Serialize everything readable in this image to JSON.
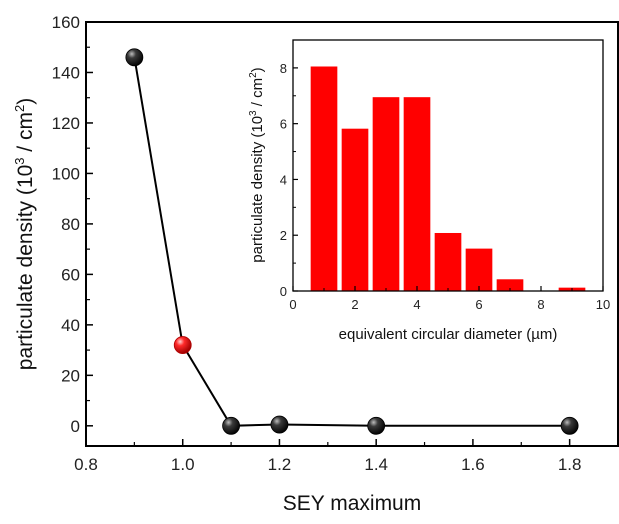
{
  "chart_data": [
    {
      "type": "line",
      "xlabel": "SEY maximum",
      "ylabel": {
        "prefix": "particulate density (10",
        "sup1": "3",
        "middle": " / cm",
        "sup2": "2",
        "suffix": ")"
      },
      "xlim": [
        0.8,
        1.9
      ],
      "ylim": [
        -8,
        160
      ],
      "xticks": [
        0.8,
        1.0,
        1.2,
        1.4,
        1.6,
        1.8
      ],
      "xtick_labels": [
        "0.8",
        "1.0",
        "1.2",
        "1.4",
        "1.6",
        "1.8"
      ],
      "yticks": [
        0,
        20,
        40,
        60,
        80,
        100,
        120,
        140,
        160
      ],
      "ytick_labels": [
        "0",
        "20",
        "40",
        "60",
        "80",
        "100",
        "120",
        "140",
        "160"
      ],
      "series": [
        {
          "x": [
            0.9,
            1.0,
            1.1,
            1.2,
            1.4,
            1.8
          ],
          "y": [
            146,
            32,
            0,
            0.5,
            0,
            0
          ],
          "marker_colors": [
            "#111111",
            "#e00000",
            "#111111",
            "#111111",
            "#111111",
            "#111111"
          ],
          "line_color": "#000000"
        }
      ]
    },
    {
      "type": "bar",
      "xlabel": "equivalent circular diameter (µm)",
      "ylabel": {
        "prefix": "particulate density (10",
        "sup1": "3",
        "middle": " / cm",
        "sup2": "2",
        "suffix": ")"
      },
      "xlim": [
        0,
        10
      ],
      "ylim": [
        0,
        9
      ],
      "xticks": [
        0,
        2,
        4,
        6,
        8,
        10
      ],
      "xtick_labels": [
        "0",
        "2",
        "4",
        "6",
        "8",
        "10"
      ],
      "yticks": [
        0,
        2,
        4,
        6,
        8
      ],
      "ytick_labels": [
        "0",
        "2",
        "4",
        "6",
        "8"
      ],
      "bar_width": 0.86,
      "x": [
        1,
        2,
        3,
        4,
        5,
        6,
        7,
        8,
        9
      ],
      "values": [
        8.05,
        5.82,
        6.95,
        6.95,
        2.08,
        1.52,
        0.42,
        0,
        0.12
      ],
      "bar_color": "#ff0000"
    }
  ]
}
